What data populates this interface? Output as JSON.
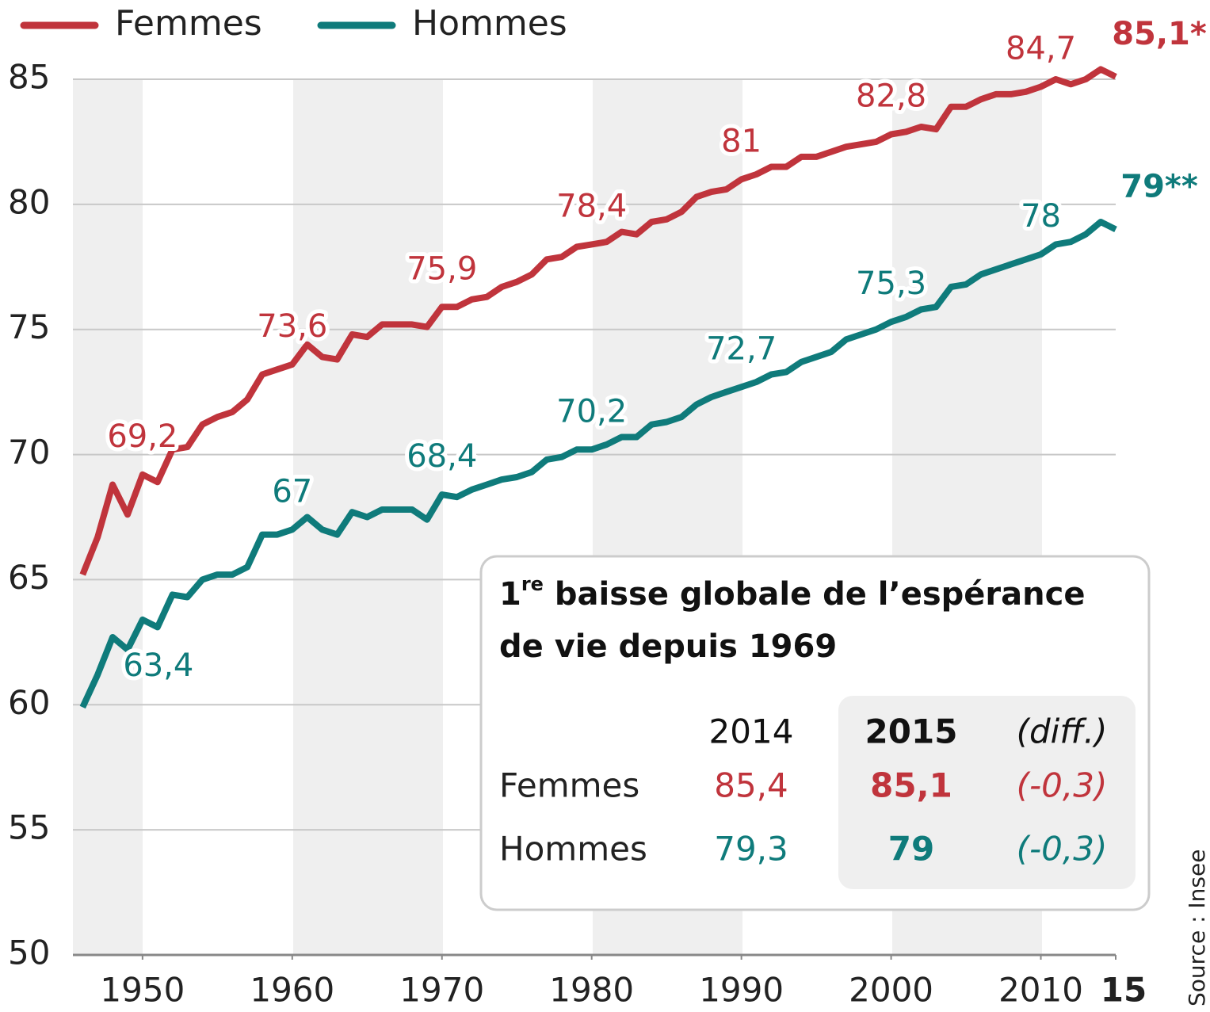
{
  "chart_data": {
    "type": "line",
    "x": [
      1946,
      1947,
      1948,
      1949,
      1950,
      1951,
      1952,
      1953,
      1954,
      1955,
      1956,
      1957,
      1958,
      1959,
      1960,
      1961,
      1962,
      1963,
      1964,
      1965,
      1966,
      1967,
      1968,
      1969,
      1970,
      1971,
      1972,
      1973,
      1974,
      1975,
      1976,
      1977,
      1978,
      1979,
      1980,
      1981,
      1982,
      1983,
      1984,
      1985,
      1986,
      1987,
      1988,
      1989,
      1990,
      1991,
      1992,
      1993,
      1994,
      1995,
      1996,
      1997,
      1998,
      1999,
      2000,
      2001,
      2002,
      2003,
      2004,
      2005,
      2006,
      2007,
      2008,
      2009,
      2010,
      2011,
      2012,
      2013,
      2014,
      2015
    ],
    "series": [
      {
        "name": "Femmes",
        "color": "#c0343c",
        "values": [
          65.2,
          66.7,
          68.8,
          67.6,
          69.2,
          68.9,
          70.2,
          70.3,
          71.2,
          71.5,
          71.7,
          72.2,
          73.2,
          73.4,
          73.6,
          74.4,
          73.9,
          73.8,
          74.8,
          74.7,
          75.2,
          75.2,
          75.2,
          75.1,
          75.9,
          75.9,
          76.2,
          76.3,
          76.7,
          76.9,
          77.2,
          77.8,
          77.9,
          78.3,
          78.4,
          78.5,
          78.9,
          78.8,
          79.3,
          79.4,
          79.7,
          80.3,
          80.5,
          80.6,
          81.0,
          81.2,
          81.5,
          81.5,
          81.9,
          81.9,
          82.1,
          82.3,
          82.4,
          82.5,
          82.8,
          82.9,
          83.1,
          83.0,
          83.9,
          83.9,
          84.2,
          84.4,
          84.4,
          84.5,
          84.7,
          85.0,
          84.8,
          85.0,
          85.4,
          85.1
        ],
        "value_labels": [
          null,
          null,
          null,
          null,
          "69,2",
          null,
          null,
          null,
          null,
          null,
          null,
          null,
          null,
          null,
          "73,6",
          null,
          null,
          null,
          null,
          null,
          null,
          null,
          null,
          null,
          "75,9",
          null,
          null,
          null,
          null,
          null,
          null,
          null,
          null,
          null,
          "78,4",
          null,
          null,
          null,
          null,
          null,
          null,
          null,
          null,
          null,
          "81",
          null,
          null,
          null,
          null,
          null,
          null,
          null,
          null,
          null,
          "82,8",
          null,
          null,
          null,
          null,
          null,
          null,
          null,
          null,
          null,
          "84,7",
          null,
          null,
          null,
          null,
          "85,1*"
        ]
      },
      {
        "name": "Hommes",
        "color": "#0f7b7b",
        "values": [
          59.9,
          61.2,
          62.7,
          62.2,
          63.4,
          63.1,
          64.4,
          64.3,
          65.0,
          65.2,
          65.2,
          65.5,
          66.8,
          66.8,
          67.0,
          67.5,
          67.0,
          66.8,
          67.7,
          67.5,
          67.8,
          67.8,
          67.8,
          67.4,
          68.4,
          68.3,
          68.6,
          68.8,
          69.0,
          69.1,
          69.3,
          69.8,
          69.9,
          70.2,
          70.2,
          70.4,
          70.7,
          70.7,
          71.2,
          71.3,
          71.5,
          72.0,
          72.3,
          72.5,
          72.7,
          72.9,
          73.2,
          73.3,
          73.7,
          73.9,
          74.1,
          74.6,
          74.8,
          75.0,
          75.3,
          75.5,
          75.8,
          75.9,
          76.7,
          76.8,
          77.2,
          77.4,
          77.6,
          77.8,
          78.0,
          78.4,
          78.5,
          78.8,
          79.3,
          79.0
        ],
        "value_labels": [
          null,
          null,
          null,
          null,
          "63,4",
          null,
          null,
          null,
          null,
          null,
          null,
          null,
          null,
          null,
          "67",
          null,
          null,
          null,
          null,
          null,
          null,
          null,
          null,
          null,
          "68,4",
          null,
          null,
          null,
          null,
          null,
          null,
          null,
          null,
          null,
          "70,2",
          null,
          null,
          null,
          null,
          null,
          null,
          null,
          null,
          null,
          "72,7",
          null,
          null,
          null,
          null,
          null,
          null,
          null,
          null,
          null,
          "75,3",
          null,
          null,
          null,
          null,
          null,
          null,
          null,
          null,
          null,
          "78",
          null,
          null,
          null,
          null,
          "79**"
        ]
      }
    ],
    "xlim": [
      1945.35,
      2015
    ],
    "xticks": [
      1950,
      1960,
      1970,
      1980,
      1990,
      2000,
      2010,
      {
        "value": 2015,
        "label": "15"
      }
    ],
    "ylim": [
      50,
      85
    ],
    "yticks": [
      50,
      55,
      60,
      65,
      70,
      75,
      80,
      85
    ],
    "grid": true,
    "legend": "top-left",
    "source": "Source : Insee",
    "inset": {
      "title": [
        "1",
        "re",
        " baisse globale de l’espérance",
        "de vie depuis 1969"
      ],
      "columns": [
        "2014",
        "2015",
        "(diff.)"
      ],
      "rows": [
        [
          "Femmes",
          "85,4",
          "85,1",
          "(-0,3)"
        ],
        [
          "Hommes",
          "79,3",
          "79",
          "(-0,3)"
        ]
      ]
    }
  }
}
